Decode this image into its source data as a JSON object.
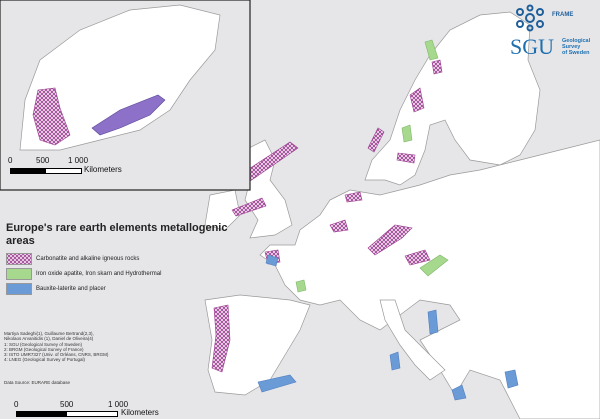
{
  "legend": {
    "title": "Europe's rare earth elements metallogenic areas",
    "items": [
      {
        "label": "Carbonatite and alkaline igneous rocks",
        "color": "#b05aa6",
        "pattern": "crosshatch"
      },
      {
        "label": "Iron oxide apatite, Iron skarn and Hydrothermal",
        "color": "#a6d88e"
      },
      {
        "label": "Bauxite-laterite and placer",
        "color": "#6b9bd6"
      }
    ]
  },
  "credits": [
    "Martiya Sadeghi(1), Guillaume Bertrand(2,3),",
    "Nikolaos Arvanitidis (1), Daniel de Oliveira(4)",
    "1: SGU (Geological Survey of Sweden)",
    "2: BRGM (Geological Survey of France)",
    "3: ISTO UMR7327 (Univ. of Orléans, CNRS, BRGM)",
    "4: LNEG (Geological Survey of Portugal)"
  ],
  "source": "Data Source: EURARE database",
  "scale_main": {
    "ticks": [
      "0",
      "500",
      "1 000"
    ],
    "unit": "Kilometers"
  },
  "scale_inset": {
    "ticks": [
      "0",
      "500",
      "1 000"
    ],
    "unit": "Kilometers"
  },
  "logos": {
    "frame": "FRAME",
    "sgu": "SGU",
    "sgu_sub": [
      "Geological",
      "Survey",
      "of Sweden"
    ]
  },
  "colors": {
    "sea": "#e6e6e9",
    "land": "#ffffff",
    "border": "#9a9a9a"
  }
}
